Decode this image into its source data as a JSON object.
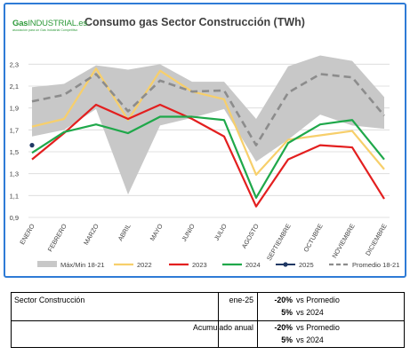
{
  "logo": {
    "gas": "Gas",
    "industrial": "INDUSTRIAL",
    "domain": ".es",
    "tagline": "asociación para un Gas Industrial Competitivo"
  },
  "chart_data": {
    "type": "line",
    "title": "Consumo gas Sector Construcción (TWh)",
    "categories": [
      "ENERO",
      "FEBRERO",
      "MARZO",
      "ABRIL",
      "MAYO",
      "JUNIO",
      "JULIO",
      "AGOSTO",
      "SEPTIEMBRE",
      "OCTUBRE",
      "NOVIEMBRE",
      "DICIEMBRE"
    ],
    "ylim": [
      0.9,
      2.4
    ],
    "yticks": [
      "0,9",
      "1,1",
      "1,3",
      "1,5",
      "1,7",
      "1,9",
      "2,1",
      "2,3"
    ],
    "ytick_values": [
      0.9,
      1.1,
      1.3,
      1.5,
      1.7,
      1.9,
      2.1,
      2.3
    ],
    "grid": true,
    "legend_position": "bottom",
    "band": {
      "name": "Máx/Min 18-21",
      "color": "#c8c8c8",
      "max": [
        2.09,
        2.12,
        2.29,
        2.25,
        2.3,
        2.14,
        2.14,
        1.8,
        2.28,
        2.38,
        2.33,
        2.0
      ],
      "min": [
        1.64,
        1.7,
        1.89,
        1.11,
        1.74,
        1.81,
        1.89,
        1.41,
        1.61,
        1.84,
        1.74,
        1.71
      ]
    },
    "series": [
      {
        "name": "2022",
        "color": "#f7cf6b",
        "dash": "",
        "values": [
          1.73,
          1.8,
          2.26,
          1.79,
          2.24,
          2.05,
          1.98,
          1.29,
          1.61,
          1.65,
          1.69,
          1.34
        ]
      },
      {
        "name": "2023",
        "color": "#e31f1f",
        "dash": "",
        "values": [
          1.43,
          1.67,
          1.93,
          1.8,
          1.93,
          1.8,
          1.64,
          1.0,
          1.43,
          1.56,
          1.54,
          1.07
        ]
      },
      {
        "name": "2024",
        "color": "#1fa84a",
        "dash": "",
        "values": [
          1.49,
          1.68,
          1.75,
          1.67,
          1.82,
          1.82,
          1.79,
          1.08,
          1.58,
          1.75,
          1.79,
          1.43
        ]
      },
      {
        "name": "2025",
        "color": "#1f3864",
        "dash": "",
        "values": [
          1.56,
          null,
          null,
          null,
          null,
          null,
          null,
          null,
          null,
          null,
          null,
          null
        ]
      },
      {
        "name": "Promedio 18-21",
        "color": "#8c8c8c",
        "dash": "8,5",
        "values": [
          1.96,
          2.02,
          2.21,
          1.87,
          2.15,
          2.05,
          2.06,
          1.56,
          2.04,
          2.21,
          2.18,
          1.83
        ]
      }
    ]
  },
  "table": {
    "sector": "Sector Construcción",
    "month": "ene-25",
    "accumulated": "Acumulado anual",
    "rows": [
      {
        "pct": "-20%",
        "ref": "vs Promedio"
      },
      {
        "pct": "5%",
        "ref": "vs 2024"
      },
      {
        "pct": "-20%",
        "ref": "vs Promedio"
      },
      {
        "pct": "5%",
        "ref": "vs 2024"
      }
    ]
  }
}
